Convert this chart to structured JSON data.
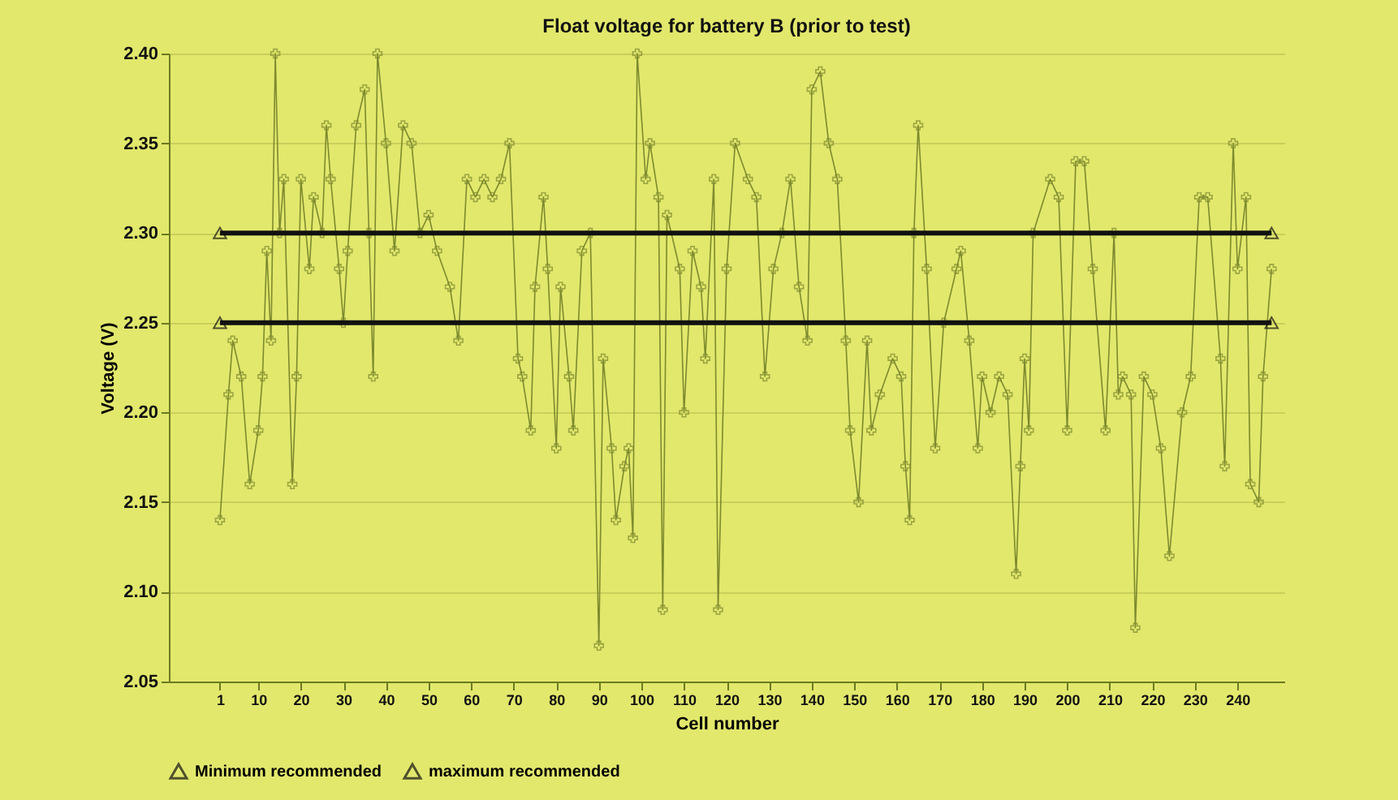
{
  "chart_data": {
    "type": "line",
    "title": "Float voltage for battery B (prior to test)",
    "xlabel": "Cell number",
    "ylabel": "Voltage (V)",
    "xlim": [
      -11,
      251
    ],
    "xticks": [
      1,
      10,
      20,
      30,
      40,
      50,
      60,
      70,
      80,
      90,
      100,
      110,
      120,
      130,
      140,
      150,
      160,
      170,
      180,
      190,
      200,
      210,
      220,
      230,
      240
    ],
    "ylim": [
      2.05,
      2.4
    ],
    "yticks": [
      {
        "value": 2.05,
        "label": "2.05"
      },
      {
        "value": 2.1,
        "label": "2.10"
      },
      {
        "value": 2.15,
        "label": "2.15"
      },
      {
        "value": 2.2,
        "label": "2.20"
      },
      {
        "value": 2.25,
        "label": "2.25"
      },
      {
        "value": 2.3,
        "label": "2.30"
      },
      {
        "value": 2.35,
        "label": "2.35"
      },
      {
        "value": 2.4,
        "label": "2.40"
      }
    ],
    "grid": "y",
    "legend": "bottom",
    "series": [
      {
        "color": "#7d8a2e",
        "marker": "cross",
        "x": [
          1,
          3,
          4,
          6,
          8,
          10,
          11,
          12,
          13,
          14,
          15,
          16,
          18,
          19,
          20,
          22,
          23,
          25,
          26,
          27,
          29,
          30,
          31,
          33,
          35,
          36,
          37,
          38,
          40,
          42,
          44,
          46,
          48,
          50,
          52,
          55,
          57,
          59,
          61,
          63,
          65,
          67,
          69,
          71,
          72,
          74,
          75,
          77,
          78,
          80,
          81,
          83,
          84,
          86,
          88,
          90,
          91,
          93,
          94,
          96,
          97,
          98,
          99,
          101,
          102,
          104,
          105,
          106,
          109,
          110,
          112,
          114,
          115,
          117,
          118,
          120,
          122,
          125,
          127,
          129,
          131,
          133,
          135,
          137,
          139,
          140,
          142,
          144,
          146,
          148,
          149,
          151,
          153,
          154,
          156,
          159,
          161,
          162,
          163,
          164,
          165,
          167,
          169,
          171,
          174,
          175,
          177,
          179,
          180,
          182,
          184,
          186,
          188,
          189,
          190,
          191,
          192,
          196,
          198,
          200,
          202,
          204,
          206,
          209,
          211,
          212,
          213,
          215,
          216,
          218,
          220,
          222,
          224,
          227,
          229,
          231,
          233,
          236,
          237,
          239,
          240,
          242,
          243,
          245,
          246,
          248
        ],
        "values": [
          2.14,
          2.21,
          2.24,
          2.22,
          2.16,
          2.19,
          2.22,
          2.29,
          2.24,
          2.4,
          2.3,
          2.33,
          2.16,
          2.22,
          2.33,
          2.28,
          2.32,
          2.3,
          2.36,
          2.33,
          2.28,
          2.25,
          2.29,
          2.36,
          2.38,
          2.3,
          2.22,
          2.4,
          2.35,
          2.29,
          2.36,
          2.35,
          2.3,
          2.31,
          2.29,
          2.27,
          2.24,
          2.33,
          2.32,
          2.33,
          2.32,
          2.33,
          2.35,
          2.23,
          2.22,
          2.19,
          2.27,
          2.32,
          2.28,
          2.18,
          2.27,
          2.22,
          2.19,
          2.29,
          2.3,
          2.07,
          2.23,
          2.18,
          2.14,
          2.17,
          2.18,
          2.13,
          2.4,
          2.33,
          2.35,
          2.32,
          2.09,
          2.31,
          2.28,
          2.2,
          2.29,
          2.27,
          2.23,
          2.33,
          2.09,
          2.28,
          2.35,
          2.33,
          2.32,
          2.22,
          2.28,
          2.3,
          2.33,
          2.27,
          2.24,
          2.38,
          2.39,
          2.35,
          2.33,
          2.24,
          2.19,
          2.15,
          2.24,
          2.19,
          2.21,
          2.23,
          2.22,
          2.17,
          2.14,
          2.3,
          2.36,
          2.28,
          2.18,
          2.25,
          2.28,
          2.29,
          2.24,
          2.18,
          2.22,
          2.2,
          2.22,
          2.21,
          2.11,
          2.17,
          2.23,
          2.19,
          2.3,
          2.33,
          2.32,
          2.19,
          2.34,
          2.34,
          2.28,
          2.19,
          2.3,
          2.21,
          2.22,
          2.21,
          2.08,
          2.22,
          2.21,
          2.18,
          2.12,
          2.2,
          2.22,
          2.32,
          2.32,
          2.23,
          2.17,
          2.35,
          2.28,
          2.32,
          2.16,
          2.15,
          2.22,
          2.28
        ]
      },
      {
        "name": "Minimum recommended",
        "color": "#111111",
        "marker": "triangle",
        "x": [
          1,
          248
        ],
        "values": [
          2.25,
          2.25
        ]
      },
      {
        "name": "maximum recommended",
        "color": "#111111",
        "marker": "triangle",
        "x": [
          1,
          248
        ],
        "values": [
          2.3,
          2.3
        ]
      }
    ]
  }
}
